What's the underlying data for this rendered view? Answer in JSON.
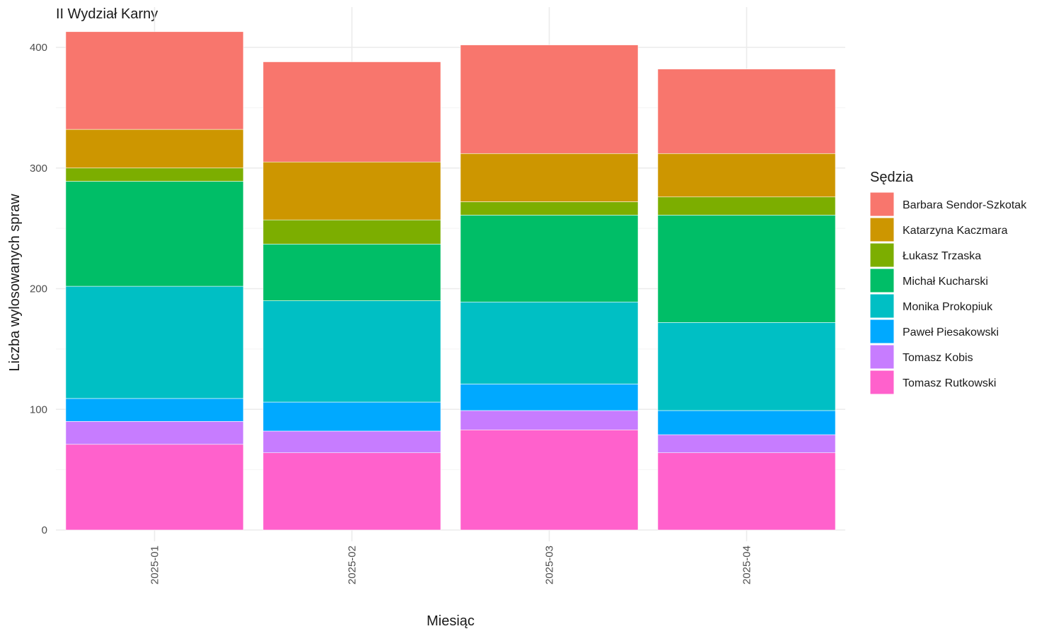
{
  "chart_data": {
    "type": "bar",
    "stacked": true,
    "title": "II Wydział Karny",
    "xlabel": "Miesiąc",
    "ylabel": "Liczba wylosowanych spraw",
    "categories": [
      "2025-01",
      "2025-02",
      "2025-03",
      "2025-04"
    ],
    "ylim": [
      0,
      412
    ],
    "yticks": [
      0,
      100,
      200,
      300,
      400
    ],
    "grid": true,
    "legend": {
      "title": "Sędzia",
      "placement": "right"
    },
    "series": [
      {
        "name": "Barbara Sendor-Szkotak",
        "color": "#F8766D",
        "values": [
          81,
          83,
          90,
          70
        ]
      },
      {
        "name": "Katarzyna Kaczmara",
        "color": "#CD9600",
        "values": [
          32,
          48,
          40,
          36
        ]
      },
      {
        "name": "Łukasz Trzaska",
        "color": "#7CAE00",
        "values": [
          11,
          20,
          11,
          15
        ]
      },
      {
        "name": "Michał Kucharski",
        "color": "#00BE67",
        "values": [
          87,
          47,
          72,
          89
        ]
      },
      {
        "name": "Monika Prokopiuk",
        "color": "#00BFC4",
        "values": [
          93,
          84,
          68,
          73
        ]
      },
      {
        "name": "Paweł Piesakowski",
        "color": "#00A9FF",
        "values": [
          19,
          24,
          22,
          20
        ]
      },
      {
        "name": "Tomasz Kobis",
        "color": "#C77CFF",
        "values": [
          19,
          18,
          16,
          15
        ]
      },
      {
        "name": "Tomasz Rutkowski",
        "color": "#FF61CC",
        "values": [
          71,
          64,
          83,
          64
        ]
      }
    ]
  }
}
